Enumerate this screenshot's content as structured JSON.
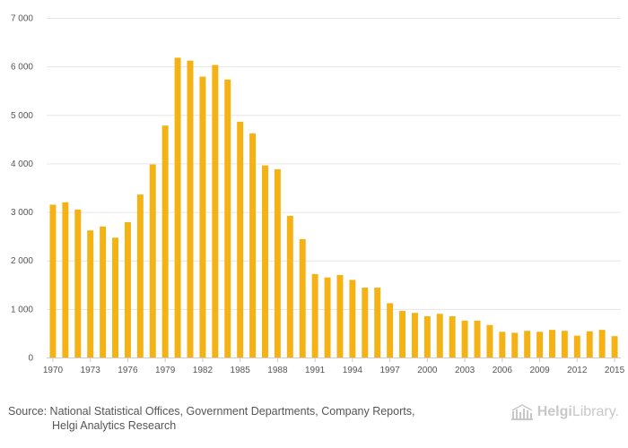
{
  "chart_data": {
    "type": "bar",
    "title": "",
    "xlabel": "",
    "ylabel": "",
    "ylim": [
      0,
      7000
    ],
    "yticks": [
      0,
      1000,
      2000,
      3000,
      4000,
      5000,
      6000,
      7000
    ],
    "ytick_labels": [
      "0",
      "1 000",
      "2 000",
      "3 000",
      "4 000",
      "5 000",
      "6 000",
      "7 000"
    ],
    "xtick_labels": [
      "1970",
      "1973",
      "1976",
      "1979",
      "1982",
      "1985",
      "1988",
      "1991",
      "1994",
      "1997",
      "2000",
      "2003",
      "2006",
      "2009",
      "2012",
      "2015"
    ],
    "categories": [
      "1970",
      "1971",
      "1972",
      "1973",
      "1974",
      "1975",
      "1976",
      "1977",
      "1978",
      "1979",
      "1980",
      "1981",
      "1982",
      "1983",
      "1984",
      "1985",
      "1986",
      "1987",
      "1988",
      "1989",
      "1990",
      "1991",
      "1992",
      "1993",
      "1994",
      "1995",
      "1996",
      "1997",
      "1998",
      "1999",
      "2000",
      "2001",
      "2002",
      "2003",
      "2004",
      "2005",
      "2006",
      "2007",
      "2008",
      "2009",
      "2010",
      "2011",
      "2012",
      "2013",
      "2014",
      "2015"
    ],
    "values": [
      3150,
      3200,
      3050,
      2620,
      2700,
      2470,
      2790,
      3360,
      3980,
      4780,
      6180,
      6120,
      5790,
      6030,
      5730,
      4860,
      4620,
      3960,
      3880,
      2920,
      2440,
      1720,
      1650,
      1700,
      1600,
      1440,
      1440,
      1120,
      960,
      920,
      850,
      900,
      850,
      760,
      760,
      670,
      530,
      510,
      550,
      530,
      570,
      550,
      450,
      540,
      570,
      440
    ],
    "grid": true,
    "legend": "none",
    "bar_color": "#f5b214"
  },
  "footer": {
    "source_line1": "Source: National Statistical Offices, Government Departments, Company Reports,",
    "source_line2": "Helgi Analytics Research",
    "brand_part1": "Helgi",
    "brand_part2": "Library."
  }
}
